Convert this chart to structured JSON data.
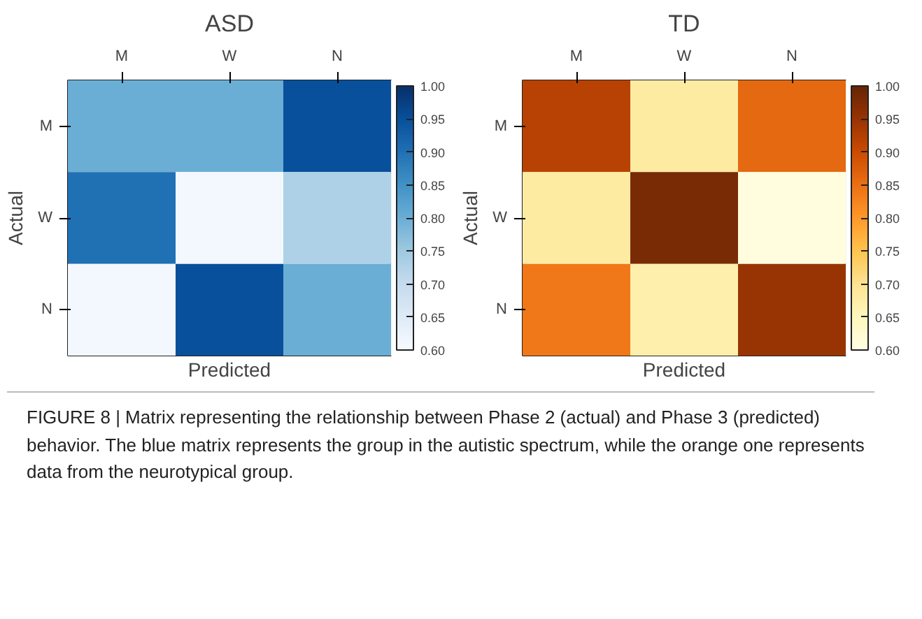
{
  "chart_data": [
    {
      "type": "heatmap",
      "title": "ASD",
      "xlabel": "Predicted",
      "ylabel": "Actual",
      "categories": [
        "M",
        "W",
        "N"
      ],
      "y_categories": [
        "M",
        "W",
        "N"
      ],
      "cells": [
        [
          0.8,
          0.8,
          0.95
        ],
        [
          0.9,
          0.61,
          0.73
        ],
        [
          0.61,
          0.95,
          0.8
        ]
      ],
      "clim": [
        0.6,
        1.0
      ],
      "cticks": [
        {
          "value": 0.6,
          "label": "0.60"
        },
        {
          "value": 0.65,
          "label": "0.65"
        },
        {
          "value": 0.7,
          "label": "0.70"
        },
        {
          "value": 0.75,
          "label": "0.75"
        },
        {
          "value": 0.8,
          "label": "0.80"
        },
        {
          "value": 0.85,
          "label": "0.85"
        },
        {
          "value": 0.9,
          "label": "0.90"
        },
        {
          "value": 0.95,
          "label": "0.95"
        },
        {
          "value": 1.0,
          "label": "1.00"
        }
      ],
      "annotations": [
        "FIGURE 8 | Matrix representing the relationship between Phase 2 (actual) and Phase 3 (predicted) behavior. The blue matrix represents the group in the autistic spectrum, while the orange one represents data from the neurotypical group."
      ]
    },
    {
      "type": "heatmap",
      "title": "TD",
      "xlabel": "Predicted",
      "ylabel": "Actual",
      "categories": [
        "M",
        "W",
        "N"
      ],
      "y_categories": [
        "M",
        "W",
        "N"
      ],
      "cells": [
        [
          0.92,
          0.68,
          0.86
        ],
        [
          0.68,
          0.98,
          0.61
        ],
        [
          0.84,
          0.67,
          0.95
        ]
      ],
      "clim": [
        0.6,
        1.0
      ],
      "cticks": [
        {
          "value": 0.6,
          "label": "0.60"
        },
        {
          "value": 0.65,
          "label": "0.65"
        },
        {
          "value": 0.7,
          "label": "0.70"
        },
        {
          "value": 0.75,
          "label": "0.75"
        },
        {
          "value": 0.8,
          "label": "0.80"
        },
        {
          "value": 0.85,
          "label": "0.85"
        },
        {
          "value": 0.9,
          "label": "0.90"
        },
        {
          "value": 0.95,
          "label": "0.95"
        },
        {
          "value": 1.0,
          "label": "1.00"
        }
      ]
    }
  ]
}
